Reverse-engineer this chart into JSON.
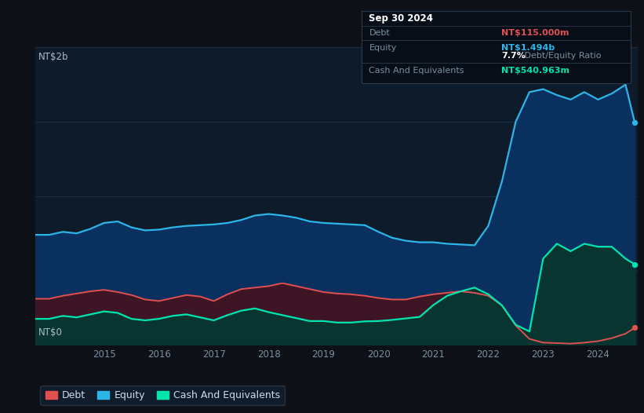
{
  "bg_color": "#0d1117",
  "plot_bg_color": "#0d1b2a",
  "grid_color": "#1a3550",
  "title_box": {
    "date": "Sep 30 2024",
    "debt_label": "Debt",
    "debt_value": "NT$115.000m",
    "debt_color": "#e05050",
    "equity_label": "Equity",
    "equity_value": "NT$1.494b",
    "equity_color": "#2cb5e8",
    "ratio_value": "7.7%",
    "ratio_label": " Debt/Equity Ratio",
    "cash_label": "Cash And Equivalents",
    "cash_value": "NT$540.963m",
    "cash_color": "#00e5b0",
    "box_bg": "#080e18",
    "box_border": "#2a3a4a",
    "label_color": "#7a8fa0"
  },
  "ylabel_top": "NT$2b",
  "ylabel_bottom": "NT$0",
  "ylim_max": 2000,
  "legend": [
    {
      "label": "Debt",
      "color": "#e05050"
    },
    {
      "label": "Equity",
      "color": "#2cb5e8"
    },
    {
      "label": "Cash And Equivalents",
      "color": "#00e5b0"
    }
  ],
  "years": [
    2013.75,
    2014.0,
    2014.25,
    2014.5,
    2014.75,
    2015.0,
    2015.25,
    2015.5,
    2015.75,
    2016.0,
    2016.25,
    2016.5,
    2016.75,
    2017.0,
    2017.25,
    2017.5,
    2017.75,
    2018.0,
    2018.25,
    2018.5,
    2018.75,
    2019.0,
    2019.25,
    2019.5,
    2019.75,
    2020.0,
    2020.25,
    2020.5,
    2020.75,
    2021.0,
    2021.25,
    2021.5,
    2021.75,
    2022.0,
    2022.25,
    2022.5,
    2022.75,
    2023.0,
    2023.25,
    2023.5,
    2023.75,
    2024.0,
    2024.25,
    2024.5,
    2024.67
  ],
  "equity": [
    740,
    740,
    760,
    750,
    780,
    820,
    830,
    790,
    770,
    775,
    790,
    800,
    805,
    810,
    820,
    840,
    870,
    880,
    870,
    855,
    830,
    820,
    815,
    810,
    805,
    760,
    720,
    700,
    690,
    690,
    680,
    675,
    670,
    800,
    1100,
    1500,
    1700,
    1720,
    1680,
    1650,
    1700,
    1650,
    1690,
    1750,
    1494
  ],
  "debt": [
    310,
    310,
    330,
    345,
    360,
    370,
    355,
    335,
    305,
    295,
    315,
    335,
    325,
    295,
    340,
    375,
    385,
    395,
    415,
    395,
    375,
    355,
    345,
    340,
    330,
    315,
    305,
    305,
    325,
    340,
    350,
    360,
    350,
    330,
    265,
    130,
    40,
    15,
    12,
    8,
    15,
    25,
    45,
    75,
    115
  ],
  "cash": [
    175,
    175,
    195,
    185,
    205,
    225,
    215,
    175,
    165,
    175,
    195,
    205,
    185,
    165,
    200,
    230,
    245,
    220,
    200,
    180,
    160,
    160,
    150,
    150,
    158,
    160,
    168,
    178,
    188,
    268,
    330,
    360,
    385,
    340,
    265,
    135,
    90,
    580,
    680,
    630,
    680,
    660,
    660,
    580,
    541
  ],
  "xticks": [
    2015,
    2016,
    2017,
    2018,
    2019,
    2020,
    2021,
    2022,
    2023,
    2024
  ],
  "equity_fill_color": "#0a3060",
  "equity_line_color": "#2cb5e8",
  "debt_fill_color": "#3d1525",
  "debt_line_color": "#e05050",
  "cash_fill_color": "#083530",
  "cash_line_color": "#00e5b0"
}
